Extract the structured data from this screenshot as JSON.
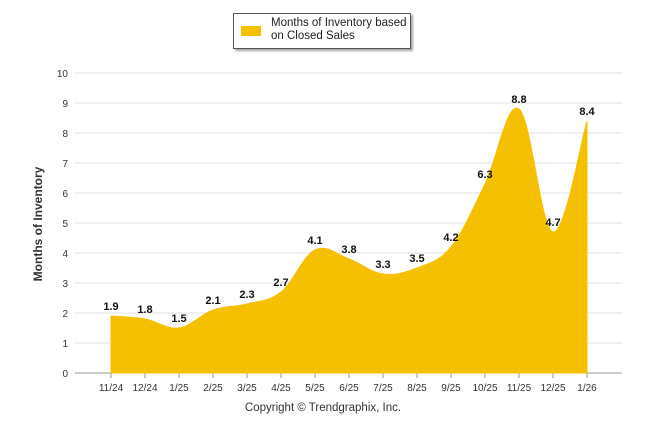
{
  "chart_data": {
    "type": "area",
    "title": "",
    "xlabel": "",
    "ylabel": "Months of Inventory",
    "ylim": [
      0,
      10
    ],
    "yticks": [
      0,
      1,
      2,
      3,
      4,
      5,
      6,
      7,
      8,
      9,
      10
    ],
    "grid": true,
    "legend_position": "top-center",
    "categories": [
      "11/24",
      "12/24",
      "1/25",
      "2/25",
      "3/25",
      "4/25",
      "5/25",
      "6/25",
      "7/25",
      "8/25",
      "9/25",
      "10/25",
      "11/25",
      "12/25",
      "1/26"
    ],
    "series": [
      {
        "name": "Months of Inventory based on Closed Sales",
        "color": "#F5C000",
        "values": [
          1.9,
          1.8,
          1.5,
          2.1,
          2.3,
          2.7,
          4.1,
          3.8,
          3.3,
          3.5,
          4.2,
          6.3,
          8.8,
          4.7,
          8.4
        ]
      }
    ]
  },
  "legend": {
    "label": "Months of Inventory based on Closed Sales"
  },
  "footer": {
    "copyright": "Copyright © Trendgraphix, Inc."
  }
}
